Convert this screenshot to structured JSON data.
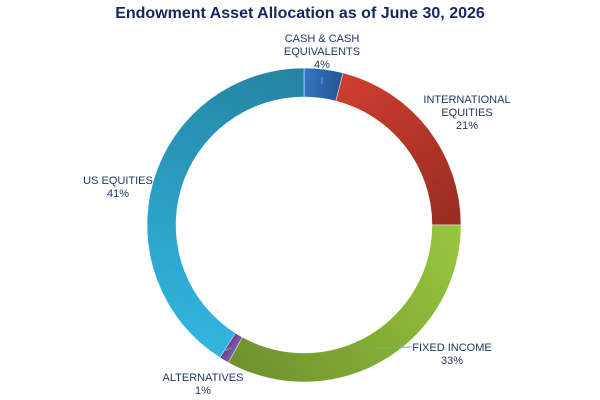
{
  "chart_data": {
    "type": "pie",
    "variant": "donut",
    "title": "Endowment Asset Allocation as of June 30, 2026",
    "legend": "none",
    "slices": [
      {
        "name": "CASH & CASH EQUIVALENTS",
        "label_lines": [
          "CASH & CASH",
          "EQUIVALENTS"
        ],
        "value": 4,
        "pct_label": "4%",
        "color": "#2f6eb8"
      },
      {
        "name": "INTERNATIONAL EQUITIES",
        "label_lines": [
          "INTERNATIONAL",
          "EQUITIES"
        ],
        "value": 21,
        "pct_label": "21%",
        "color": "#c0392b"
      },
      {
        "name": "FIXED INCOME",
        "label_lines": [
          "FIXED INCOME"
        ],
        "value": 33,
        "pct_label": "33%",
        "color": "#8db83a"
      },
      {
        "name": "ALTERNATIVES",
        "label_lines": [
          "ALTERNATIVES"
        ],
        "value": 1,
        "pct_label": "1%",
        "color": "#7a55a8"
      },
      {
        "name": "US EQUITIES",
        "label_lines": [
          "US EQUITIES"
        ],
        "value": 41,
        "pct_label": "41%",
        "color": "#2ea8cf"
      }
    ]
  }
}
